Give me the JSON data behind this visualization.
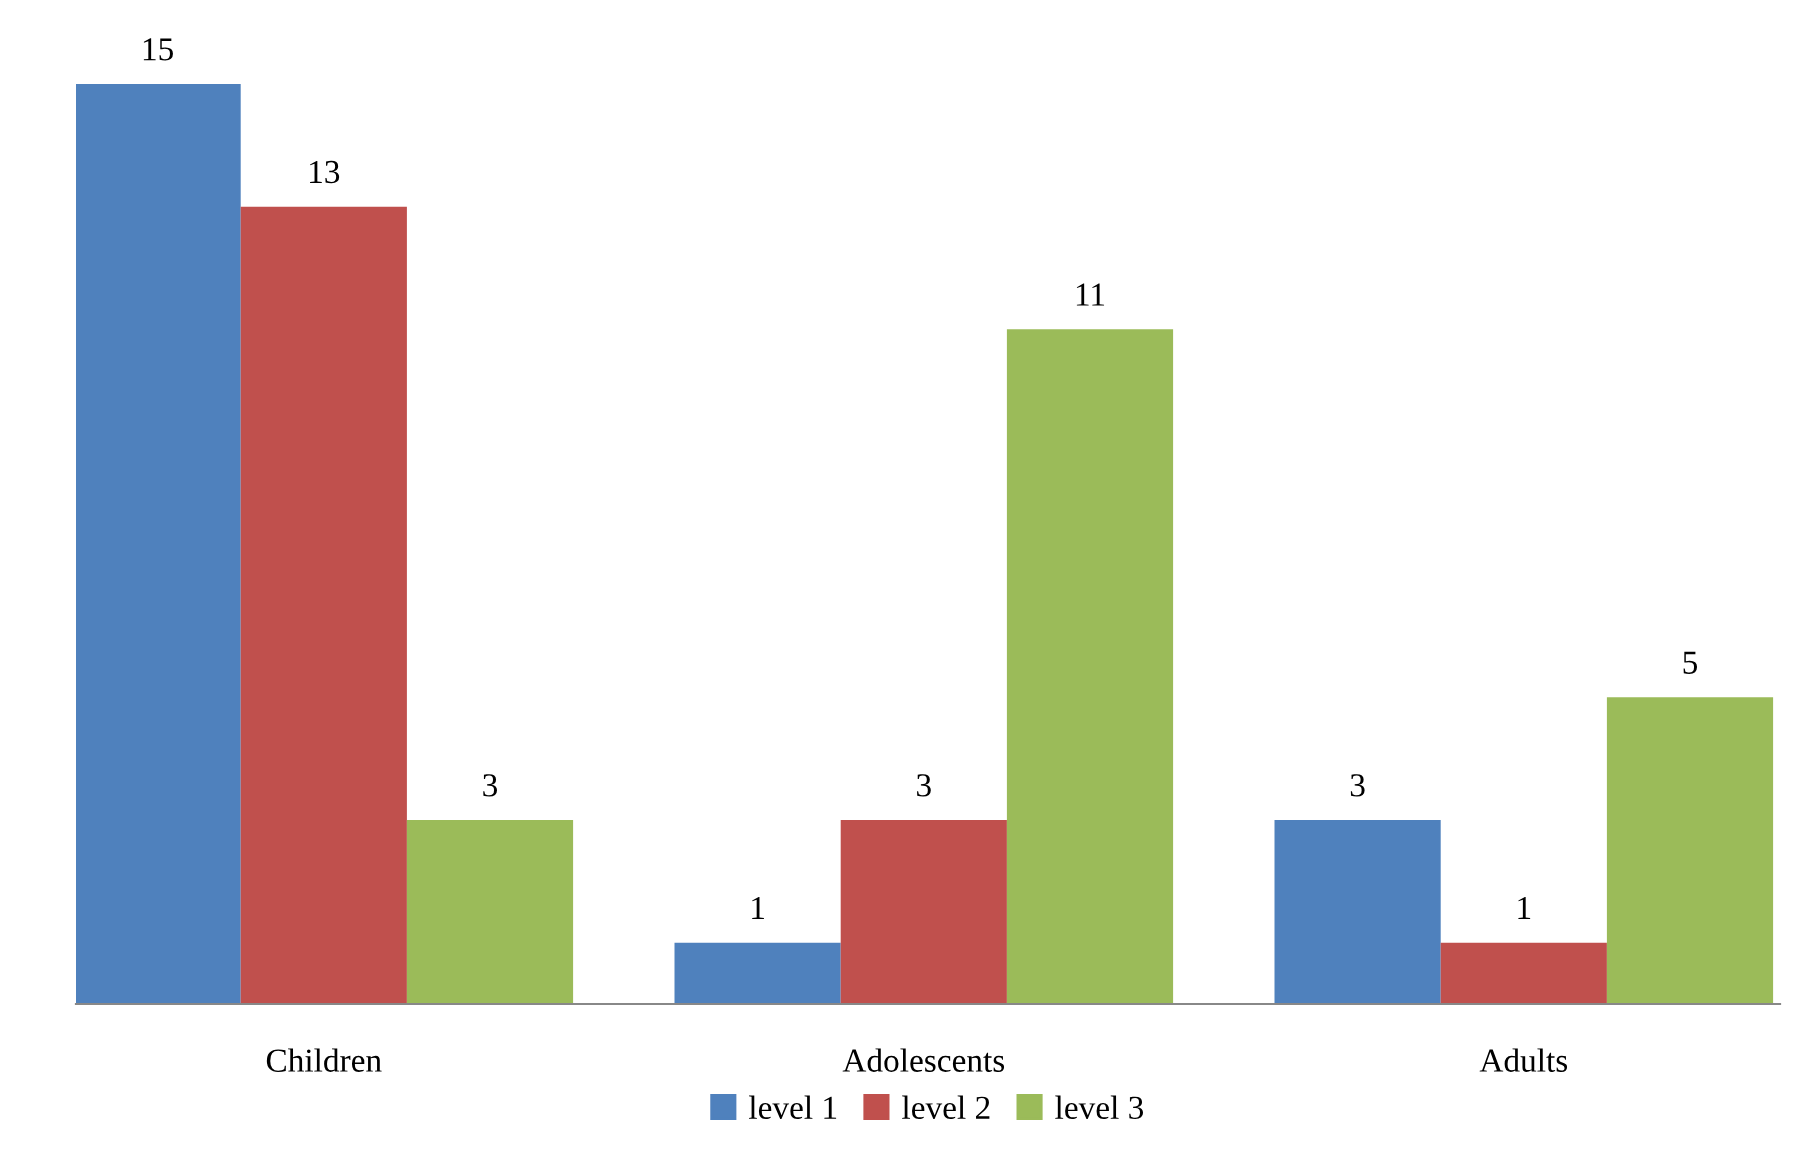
{
  "chart_data": {
    "type": "bar",
    "categories": [
      "Children",
      "Adolescents",
      "Adults"
    ],
    "series": [
      {
        "name": "level 1",
        "color": "#4f81bd",
        "values": [
          15,
          1,
          3
        ]
      },
      {
        "name": "level 2",
        "color": "#c0504d",
        "values": [
          13,
          3,
          1
        ]
      },
      {
        "name": "level 3",
        "color": "#9bbb59",
        "values": [
          3,
          11,
          5
        ]
      }
    ],
    "data_labels": true,
    "legend": "bottom",
    "grid": false
  }
}
